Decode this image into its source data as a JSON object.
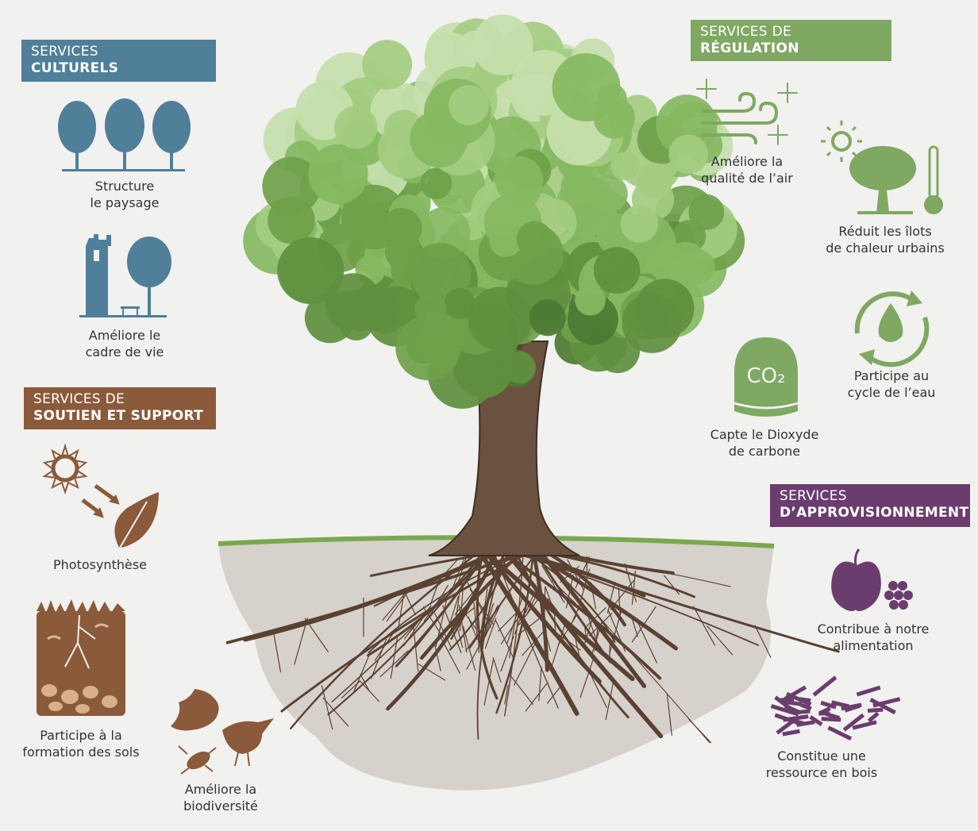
{
  "sections": [
    {
      "title": [
        "SERVICES",
        "CULTURELS"
      ],
      "items": [
        {
          "label": [
            "Structure",
            "le paysage"
          ]
        },
        {
          "label": [
            "Améliore le",
            "cadre de vie"
          ]
        }
      ]
    },
    {
      "title": [
        "SERVICES DE",
        "RÉGULATION"
      ],
      "items": [
        {
          "label": [
            "Améliore la",
            "qualité de l’air"
          ]
        },
        {
          "label": [
            "Réduit les îlots",
            "de chaleur urbains"
          ]
        },
        {
          "label": [
            "Capte le Dioxyde",
            "de carbone"
          ],
          "icon_text": "CO₂"
        },
        {
          "label": [
            "Participe au",
            "cycle de l’eau"
          ]
        }
      ]
    },
    {
      "title": [
        "SERVICES DE",
        "SOUTIEN ET SUPPORT"
      ],
      "items": [
        {
          "label": [
            "Photosynthèse"
          ]
        },
        {
          "label": [
            "Participe à la",
            "formation des sols"
          ]
        },
        {
          "label": [
            "Améliore la",
            "biodiversité"
          ]
        }
      ]
    },
    {
      "title": [
        "SERVICES",
        "D’APPROVISIONNEMENT"
      ],
      "items": [
        {
          "label": [
            "Contribue à notre",
            "alimentation"
          ]
        },
        {
          "label": [
            "Constitue une",
            "ressource en bois"
          ]
        }
      ]
    }
  ]
}
